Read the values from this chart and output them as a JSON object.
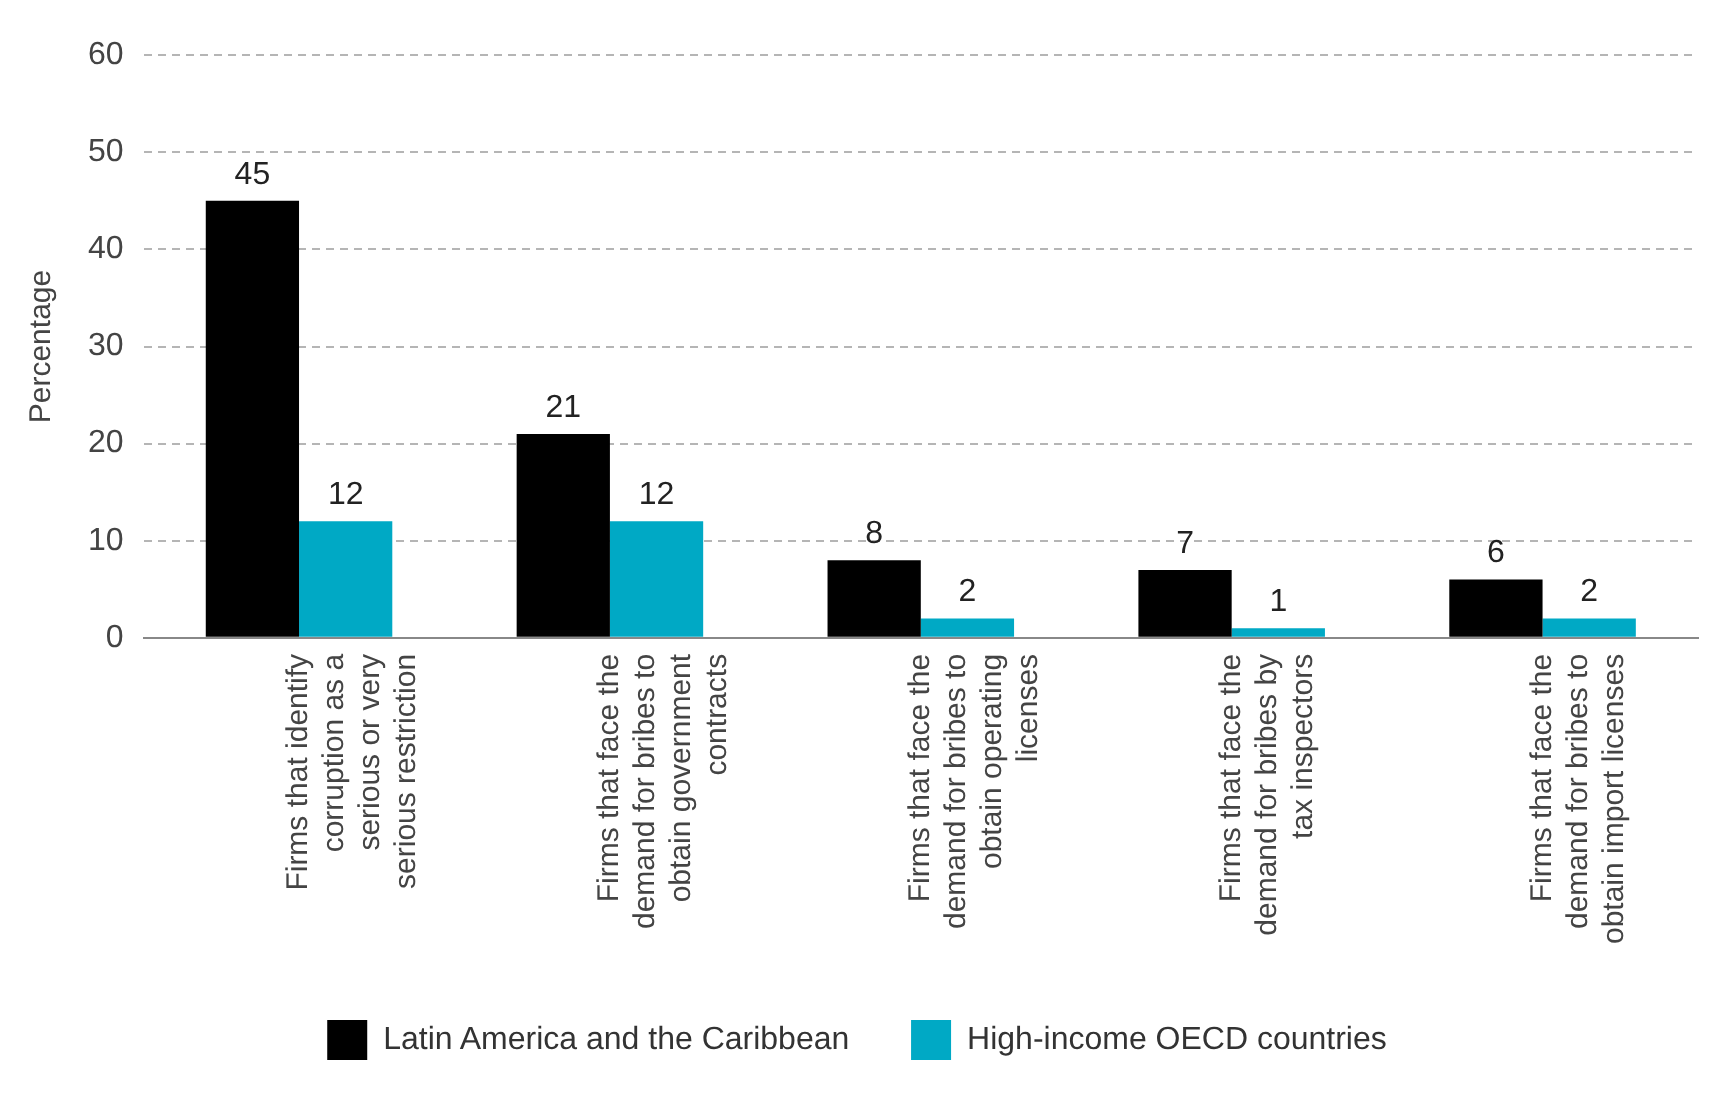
{
  "chart_data": {
    "type": "bar",
    "ylabel": "Percentage",
    "categories": [
      "Firms that identify corruption as a serious or very serious restriction",
      "Firms that face the demand for bribes to obtain government contracts",
      "Firms that face the demand for bribes to obtain operating licenses",
      "Firms that face the demand for bribes by tax inspectors",
      "Firms that face the demand for bribes to obtain import licenses"
    ],
    "series": [
      {
        "name": "Latin America and the Caribbean",
        "color": "#000000",
        "values": [
          45,
          21,
          8,
          7,
          6
        ]
      },
      {
        "name": "High-income OECD countries",
        "color": "#00a9c5",
        "values": [
          12,
          12,
          2,
          1,
          2
        ]
      }
    ],
    "ylim": [
      0,
      60
    ],
    "yticks": [
      0,
      10,
      20,
      30,
      40,
      50,
      60
    ],
    "grid": "y",
    "legend": "bottom",
    "data_labels": true
  }
}
